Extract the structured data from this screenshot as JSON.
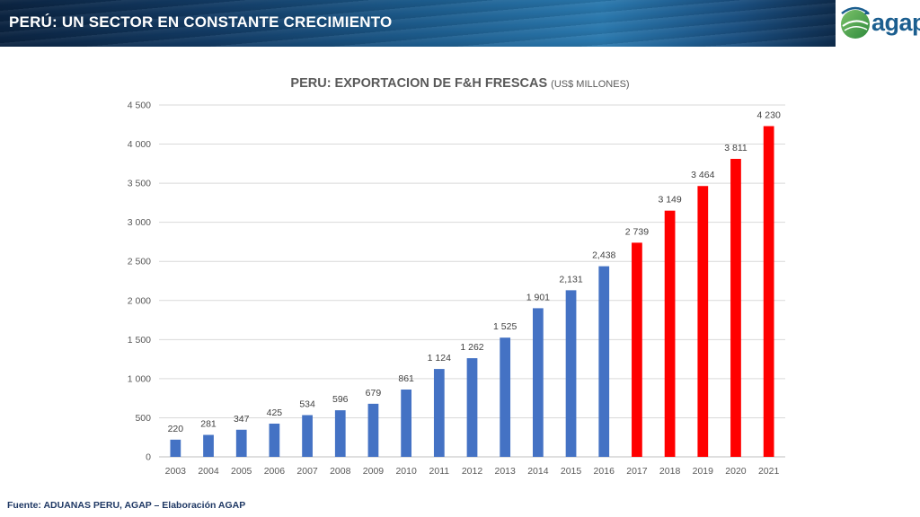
{
  "header": {
    "title": "PERÚ: UN SECTOR EN CONSTANTE CRECIMIENTO",
    "logo_text": "agap"
  },
  "footer": {
    "source": "Fuente: ADUANAS PERU, AGAP – Elaboración AGAP"
  },
  "colors": {
    "historic": "#4472c4",
    "recent": "#ff0000",
    "grid": "#d9d9d9"
  },
  "chart_data": {
    "type": "bar",
    "title": "PERU: EXPORTACION DE F&H FRESCAS",
    "title_unit": "(US$ MILLONES)",
    "categories": [
      "2003",
      "2004",
      "2005",
      "2006",
      "2007",
      "2008",
      "2009",
      "2010",
      "2011",
      "2012",
      "2013",
      "2014",
      "2015",
      "2016",
      "2017",
      "2018",
      "2019",
      "2020",
      "2021"
    ],
    "values": [
      220,
      281,
      347,
      425,
      534,
      596,
      679,
      861,
      1124,
      1262,
      1525,
      1901,
      2131,
      2438,
      2739,
      3149,
      3464,
      3811,
      4230
    ],
    "data_labels": [
      "220",
      "281",
      "347",
      "425",
      "534",
      "596",
      "679",
      "861",
      "1 124",
      "1 262",
      "1 525",
      "1 901",
      "2,131",
      "2,438",
      "2 739",
      "3 149",
      "3 464",
      "3 811",
      "4 230"
    ],
    "bar_colors": [
      "#4472c4",
      "#4472c4",
      "#4472c4",
      "#4472c4",
      "#4472c4",
      "#4472c4",
      "#4472c4",
      "#4472c4",
      "#4472c4",
      "#4472c4",
      "#4472c4",
      "#4472c4",
      "#4472c4",
      "#4472c4",
      "#ff0000",
      "#ff0000",
      "#ff0000",
      "#ff0000",
      "#ff0000"
    ],
    "ylim": [
      0,
      4500
    ],
    "yticks": [
      0,
      500,
      1000,
      1500,
      2000,
      2500,
      3000,
      3500,
      4000,
      4500
    ],
    "ytick_labels": [
      "0",
      "500",
      "1 000",
      "1 500",
      "2 000",
      "2 500",
      "3 000",
      "3 500",
      "4 000",
      "4 500"
    ],
    "grid": true,
    "legend": "none",
    "xlabel": "",
    "ylabel": ""
  }
}
